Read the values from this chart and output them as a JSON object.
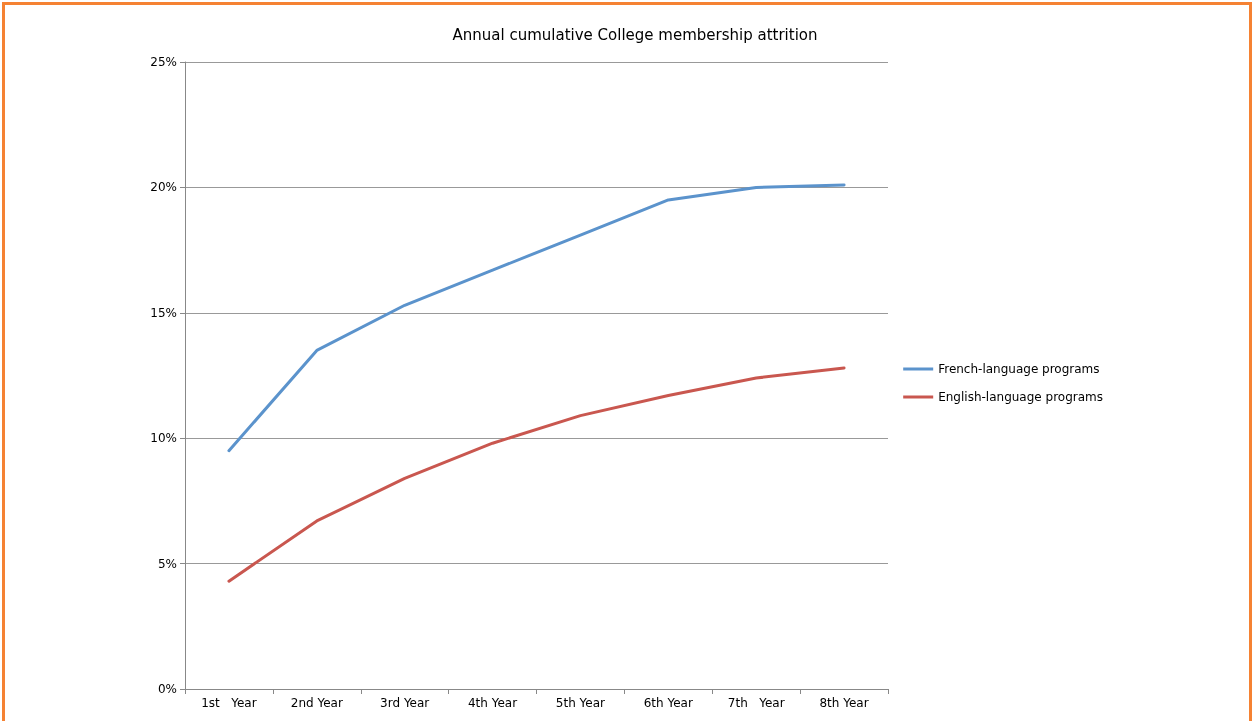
{
  "chart_data": {
    "type": "line",
    "title": "Annual cumulative College membership attrition",
    "categories": [
      "1st   Year",
      "2nd Year",
      "3rd Year",
      "4th Year",
      "5th Year",
      "6th Year",
      "7th   Year",
      "8th Year"
    ],
    "series": [
      {
        "name": "French-language programs",
        "color": "#5b93cc",
        "values": [
          9.5,
          13.5,
          15.3,
          16.7,
          18.1,
          19.5,
          20.0,
          20.1
        ]
      },
      {
        "name": "English-language programs",
        "color": "#c9574f",
        "values": [
          4.3,
          6.7,
          8.4,
          9.8,
          10.9,
          11.7,
          12.4,
          12.8
        ]
      }
    ],
    "ylim": [
      0,
      25
    ],
    "yticks": [
      {
        "value": 0,
        "label": "0%"
      },
      {
        "value": 5,
        "label": "5%"
      },
      {
        "value": 10,
        "label": "10%"
      },
      {
        "value": 15,
        "label": "15%"
      },
      {
        "value": 20,
        "label": "20%"
      },
      {
        "value": 25,
        "label": "25%"
      }
    ],
    "grid": "y",
    "legend": "right",
    "marker": "none",
    "line_style": "solid"
  }
}
